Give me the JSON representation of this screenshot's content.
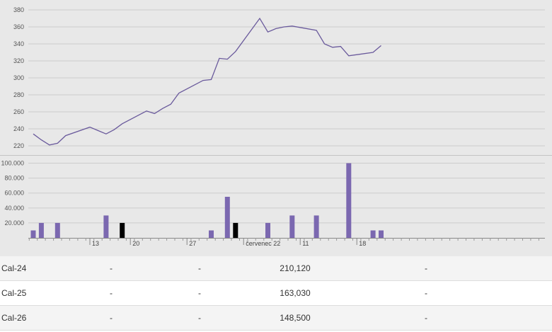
{
  "chart_data": [
    {
      "type": "line",
      "series": [
        {
          "x": [
            "2024-07-08",
            "2024-07-09",
            "2024-07-10",
            "2024-07-11",
            "2024-07-12",
            "2024-07-15",
            "2024-07-16",
            "2024-07-17",
            "2024-07-18",
            "2024-07-19",
            "2024-07-22",
            "2024-07-23",
            "2024-07-24",
            "2024-07-25",
            "2024-07-26",
            "2024-07-29",
            "2024-07-30",
            "2024-07-31",
            "2024-08-01",
            "2024-08-02",
            "2024-08-05",
            "2024-08-06",
            "2024-08-07",
            "2024-08-08",
            "2024-08-09",
            "2024-08-12",
            "2024-08-13",
            "2024-08-14",
            "2024-08-15",
            "2024-08-16",
            "2024-08-19",
            "2024-08-20"
          ],
          "values": [
            234,
            227,
            221,
            223,
            232,
            242,
            238,
            234,
            239,
            246,
            261,
            258,
            264,
            269,
            282,
            297,
            298,
            323,
            322,
            331,
            370,
            354,
            358,
            360,
            361,
            356,
            340,
            336,
            337,
            326,
            330,
            338
          ]
        }
      ],
      "ylim": [
        210,
        385
      ],
      "yticks": [
        220,
        240,
        260,
        280,
        300,
        320,
        340,
        360,
        380
      ],
      "color": "#6a5a9c",
      "grid": true
    },
    {
      "type": "bar",
      "x": [
        "2024-07-08",
        "2024-07-09",
        "2024-07-11",
        "2024-07-17",
        "2024-07-19",
        "2024-07-30",
        "2024-08-01",
        "2024-08-02",
        "2024-08-06",
        "2024-08-09",
        "2024-08-12",
        "2024-08-16",
        "2024-08-19",
        "2024-08-20"
      ],
      "values": [
        10000,
        20000,
        20000,
        30000,
        20000,
        10000,
        55000,
        20000,
        20000,
        30000,
        30000,
        100000,
        10000,
        10000
      ],
      "colors": [
        "#7b68b0",
        "#7b68b0",
        "#7b68b0",
        "#7b68b0",
        "#000000",
        "#7b68b0",
        "#7b68b0",
        "#000000",
        "#7b68b0",
        "#7b68b0",
        "#7b68b0",
        "#7b68b0",
        "#7b68b0",
        "#7b68b0"
      ],
      "ylim": [
        0,
        110000
      ],
      "yticks": [
        "20.000",
        "40.000",
        "60.000",
        "80.000",
        "100.000"
      ],
      "xticks": [
        {
          "date": "2024-07-15",
          "label": "13"
        },
        {
          "date": "2024-07-20",
          "label": "20"
        },
        {
          "date": "2024-07-27",
          "label": "27"
        },
        {
          "date": "2024-08-03",
          "label": "červenec 22"
        },
        {
          "date": "2024-08-10",
          "label": "11"
        },
        {
          "date": "2024-08-17",
          "label": "18"
        }
      ],
      "grid": true
    }
  ],
  "table": {
    "rows": [
      {
        "name": "Cal-24",
        "c1": "-",
        "c2": "-",
        "c3": "210,120",
        "c4": "-"
      },
      {
        "name": "Cal-25",
        "c1": "-",
        "c2": "-",
        "c3": "163,030",
        "c4": "-"
      },
      {
        "name": "Cal-26",
        "c1": "-",
        "c2": "-",
        "c3": "148,500",
        "c4": "-"
      }
    ]
  }
}
